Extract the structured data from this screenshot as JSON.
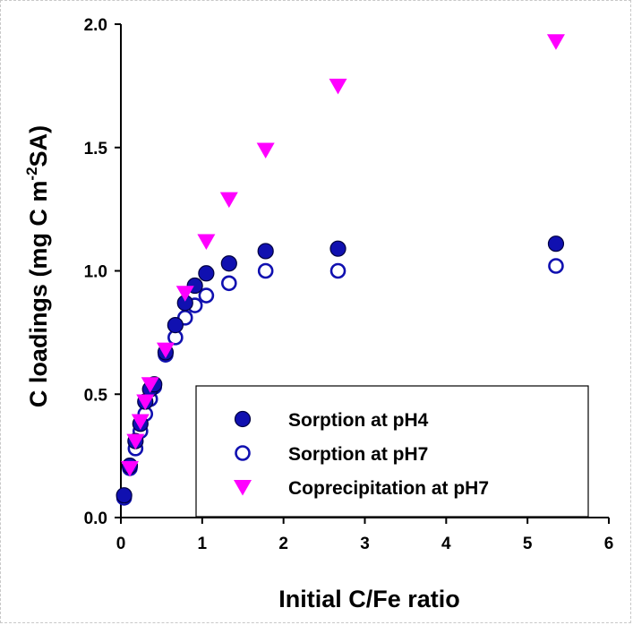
{
  "chart_data": {
    "type": "scatter",
    "title": "",
    "xlabel": "Initial C/Fe ratio",
    "ylabel": {
      "main": "C loadings (mg C m",
      "sup": "-2",
      "tail": "SA)"
    },
    "xlim": [
      0,
      6
    ],
    "ylim": [
      0,
      2.0
    ],
    "x_ticks": [
      "0",
      "1",
      "2",
      "3",
      "4",
      "5",
      "6"
    ],
    "y_ticks": [
      "0.0",
      "0.5",
      "1.0",
      "1.5",
      "2.0"
    ],
    "grid": false,
    "legend_position": "bottom-right",
    "series": [
      {
        "name": "Sorption at pH4",
        "marker": "filled-circle",
        "color": "#1010b0",
        "x": [
          0.04,
          0.11,
          0.18,
          0.24,
          0.3,
          0.36,
          0.41,
          0.55,
          0.67,
          0.79,
          0.91,
          1.05,
          1.33,
          1.78,
          2.67,
          5.35
        ],
        "y": [
          0.09,
          0.21,
          0.31,
          0.38,
          0.47,
          0.52,
          0.54,
          0.67,
          0.78,
          0.87,
          0.94,
          0.99,
          1.03,
          1.08,
          1.09,
          1.11
        ]
      },
      {
        "name": "Sorption at pH7",
        "marker": "open-circle",
        "color": "#1010b0",
        "x": [
          0.04,
          0.11,
          0.18,
          0.24,
          0.3,
          0.36,
          0.41,
          0.55,
          0.67,
          0.79,
          0.91,
          1.05,
          1.33,
          1.78,
          2.67,
          5.35
        ],
        "y": [
          0.08,
          0.2,
          0.28,
          0.35,
          0.42,
          0.48,
          0.53,
          0.66,
          0.73,
          0.81,
          0.86,
          0.9,
          0.95,
          1.0,
          1.0,
          1.02
        ]
      },
      {
        "name": "Coprecipitation at pH7",
        "marker": "triangle-down",
        "color": "#ff00ff",
        "x": [
          0.11,
          0.18,
          0.24,
          0.3,
          0.36,
          0.55,
          0.79,
          1.05,
          1.33,
          1.78,
          2.67,
          5.35
        ],
        "y": [
          0.2,
          0.31,
          0.39,
          0.47,
          0.54,
          0.68,
          0.91,
          1.12,
          1.29,
          1.49,
          1.75,
          1.93
        ]
      }
    ]
  }
}
